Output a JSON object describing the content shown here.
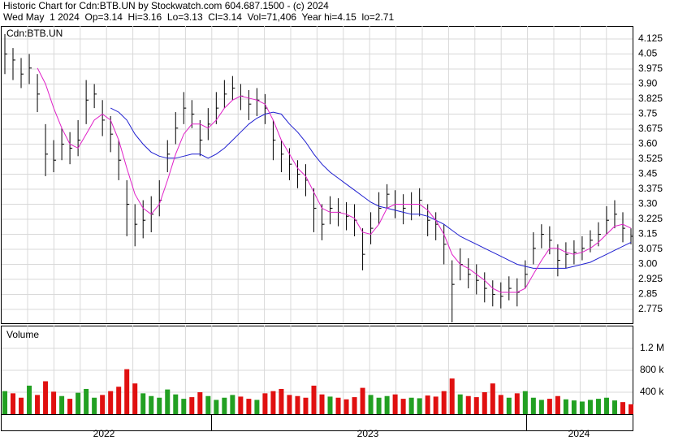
{
  "chart_data": {
    "type": "ohlc",
    "header": [
      "Historic Chart for Cdn:BTB.UN by Stockwatch.com 604.687.1500 - (c) 2024",
      "Wed May  1 2024  Op=3.14  Hi=3.16  Lo=3.13  Cl=3.14  Vol=71,406  Year hi=4.15  lo=2.71"
    ],
    "symbol": "Cdn:BTB.UN",
    "ylim": [
      2.706,
      4.19
    ],
    "yticks": [
      {
        "value": 4.125,
        "label": "4.125"
      },
      4.05,
      3.975,
      {
        "value": 3.9,
        "label": "3.90"
      },
      3.825,
      3.75,
      3.675,
      {
        "value": 3.6,
        "label": "3.60"
      },
      3.525,
      3.45,
      3.375,
      {
        "value": 3.3,
        "label": "3.30"
      },
      3.225,
      3.15,
      3.075,
      {
        "value": 3.0,
        "label": "3.00"
      },
      2.925,
      2.85,
      2.775
    ],
    "grid": true,
    "color": "#000000",
    "high": [
      4.15,
      4.08,
      4.03,
      4.05,
      3.95,
      3.7,
      3.62,
      3.68,
      3.66,
      3.72,
      3.92,
      3.9,
      3.82,
      3.74,
      3.62,
      3.42,
      3.3,
      3.32,
      3.34,
      3.42,
      3.62,
      3.76,
      3.86,
      3.82,
      3.72,
      3.78,
      3.86,
      3.92,
      3.94,
      3.9,
      3.87,
      3.88,
      3.85,
      3.72,
      3.62,
      3.58,
      3.52,
      3.5,
      3.38,
      3.3,
      3.34,
      3.33,
      3.31,
      3.3,
      3.18,
      3.26,
      3.36,
      3.4,
      3.37,
      3.35,
      3.36,
      3.38,
      3.3,
      3.26,
      3.2,
      3.02,
      3.08,
      3.03,
      3.0,
      2.96,
      2.92,
      2.91,
      2.94,
      2.93,
      3.02,
      3.16,
      3.2,
      3.19,
      3.1,
      3.11,
      3.12,
      3.14,
      3.17,
      3.21,
      3.29,
      3.32,
      3.26,
      3.18
    ],
    "low": [
      3.95,
      3.92,
      3.88,
      3.9,
      3.76,
      3.44,
      3.46,
      3.52,
      3.5,
      3.54,
      3.7,
      3.78,
      3.64,
      3.56,
      3.42,
      3.14,
      3.09,
      3.13,
      3.16,
      3.24,
      3.46,
      3.6,
      3.7,
      3.68,
      3.54,
      3.62,
      3.7,
      3.78,
      3.82,
      3.77,
      3.72,
      3.74,
      3.7,
      3.52,
      3.46,
      3.42,
      3.38,
      3.34,
      3.16,
      3.12,
      3.2,
      3.19,
      3.17,
      3.14,
      2.97,
      3.1,
      3.2,
      3.28,
      3.23,
      3.2,
      3.22,
      3.24,
      3.14,
      3.12,
      3.0,
      2.71,
      2.92,
      2.88,
      2.85,
      2.81,
      2.79,
      2.78,
      2.82,
      2.79,
      2.88,
      3.0,
      3.08,
      3.05,
      2.94,
      2.98,
      3.0,
      3.02,
      3.06,
      3.09,
      3.15,
      3.18,
      3.11,
      3.1
    ],
    "close": [
      4.05,
      4.02,
      3.95,
      3.98,
      3.85,
      3.55,
      3.52,
      3.6,
      3.58,
      3.62,
      3.82,
      3.85,
      3.72,
      3.65,
      3.52,
      3.3,
      3.2,
      3.22,
      3.25,
      3.32,
      3.55,
      3.68,
      3.78,
      3.75,
      3.62,
      3.7,
      3.78,
      3.85,
      3.88,
      3.84,
      3.8,
      3.82,
      3.78,
      3.62,
      3.55,
      3.5,
      3.45,
      3.42,
      3.28,
      3.2,
      3.28,
      3.26,
      3.24,
      3.22,
      3.05,
      3.18,
      3.28,
      3.35,
      3.3,
      3.28,
      3.3,
      3.32,
      3.22,
      3.2,
      3.1,
      2.9,
      3.0,
      2.95,
      2.92,
      2.88,
      2.85,
      2.84,
      2.88,
      2.86,
      2.95,
      3.08,
      3.15,
      3.12,
      3.02,
      3.05,
      3.06,
      3.08,
      3.12,
      3.15,
      3.22,
      3.25,
      3.18,
      3.14
    ],
    "ma_short": {
      "color": "#e020c8",
      "values": [
        null,
        null,
        null,
        null,
        3.98,
        3.9,
        3.78,
        3.68,
        3.6,
        3.58,
        3.65,
        3.72,
        3.75,
        3.72,
        3.62,
        3.48,
        3.35,
        3.28,
        3.25,
        3.3,
        3.42,
        3.55,
        3.65,
        3.7,
        3.7,
        3.68,
        3.72,
        3.78,
        3.82,
        3.84,
        3.83,
        3.82,
        3.8,
        3.72,
        3.62,
        3.55,
        3.48,
        3.44,
        3.36,
        3.28,
        3.26,
        3.26,
        3.25,
        3.23,
        3.16,
        3.15,
        3.2,
        3.28,
        3.3,
        3.3,
        3.3,
        3.3,
        3.27,
        3.22,
        3.15,
        3.05,
        3.0,
        2.98,
        2.95,
        2.92,
        2.88,
        2.86,
        2.86,
        2.86,
        2.88,
        2.95,
        3.02,
        3.08,
        3.08,
        3.06,
        3.05,
        3.06,
        3.08,
        3.11,
        3.15,
        3.19,
        3.2,
        3.18
      ]
    },
    "ma_long": {
      "color": "#1f1fd0",
      "values": [
        null,
        null,
        null,
        null,
        null,
        null,
        null,
        null,
        null,
        null,
        null,
        null,
        null,
        3.78,
        3.76,
        3.72,
        3.65,
        3.6,
        3.56,
        3.54,
        3.53,
        3.53,
        3.54,
        3.55,
        3.55,
        3.53,
        3.55,
        3.58,
        3.62,
        3.66,
        3.7,
        3.73,
        3.75,
        3.76,
        3.75,
        3.7,
        3.66,
        3.61,
        3.55,
        3.5,
        3.46,
        3.43,
        3.4,
        3.37,
        3.34,
        3.31,
        3.29,
        3.28,
        3.27,
        3.26,
        3.25,
        3.25,
        3.24,
        3.22,
        3.2,
        3.17,
        3.14,
        3.12,
        3.1,
        3.08,
        3.06,
        3.04,
        3.02,
        3.0,
        2.99,
        2.98,
        2.98,
        2.98,
        2.98,
        2.98,
        2.99,
        3.0,
        3.01,
        3.03,
        3.05,
        3.07,
        3.09,
        3.11
      ]
    },
    "volume": {
      "label": "Volume",
      "ylim": [
        0,
        1615000
      ],
      "yticks": [
        {
          "value": 1200000,
          "label": "1.2 M"
        },
        {
          "value": 800000,
          "label": "800 k"
        },
        {
          "value": 400000,
          "label": "400 k"
        }
      ],
      "up_color": "#22a022",
      "down_color": "#e01010",
      "values": [
        420000,
        380000,
        300000,
        520000,
        350000,
        600000,
        410000,
        330000,
        280000,
        390000,
        460000,
        300000,
        350000,
        420000,
        500000,
        820000,
        560000,
        380000,
        330000,
        300000,
        450000,
        360000,
        280000,
        310000,
        400000,
        330000,
        260000,
        300000,
        350000,
        320000,
        280000,
        260000,
        380000,
        420000,
        460000,
        350000,
        330000,
        300000,
        520000,
        360000,
        320000,
        300000,
        270000,
        310000,
        480000,
        350000,
        300000,
        330000,
        360000,
        280000,
        300000,
        290000,
        340000,
        320000,
        420000,
        650000,
        360000,
        330000,
        310000,
        400000,
        560000,
        350000,
        300000,
        380000,
        420000,
        300000,
        260000,
        280000,
        330000,
        270000,
        250000,
        230000,
        260000,
        280000,
        300000,
        250000,
        220000,
        180000
      ]
    },
    "x_labels": [
      "2022",
      "2023",
      "2024"
    ]
  }
}
